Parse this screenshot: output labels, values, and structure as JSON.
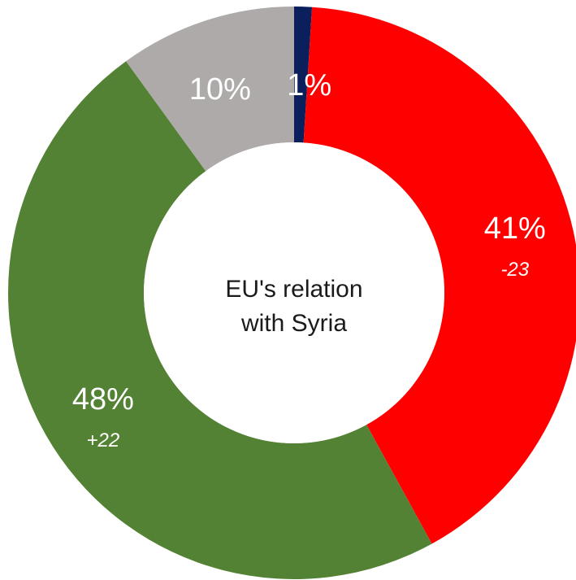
{
  "chart_data": {
    "type": "pie",
    "donut": true,
    "center_title_lines": [
      "EU's relation",
      "with Syria"
    ],
    "slices": [
      {
        "value": 1,
        "label": "1%",
        "delta": "",
        "color": "#0b1f5c"
      },
      {
        "value": 41,
        "label": "41%",
        "delta": "-23",
        "color": "#ff0000"
      },
      {
        "value": 48,
        "label": "48%",
        "delta": "+22",
        "color": "#548235"
      },
      {
        "value": 10,
        "label": "10%",
        "delta": "",
        "color": "#aeaaaa"
      }
    ],
    "start_angle_deg": 0,
    "direction": "clockwise"
  }
}
